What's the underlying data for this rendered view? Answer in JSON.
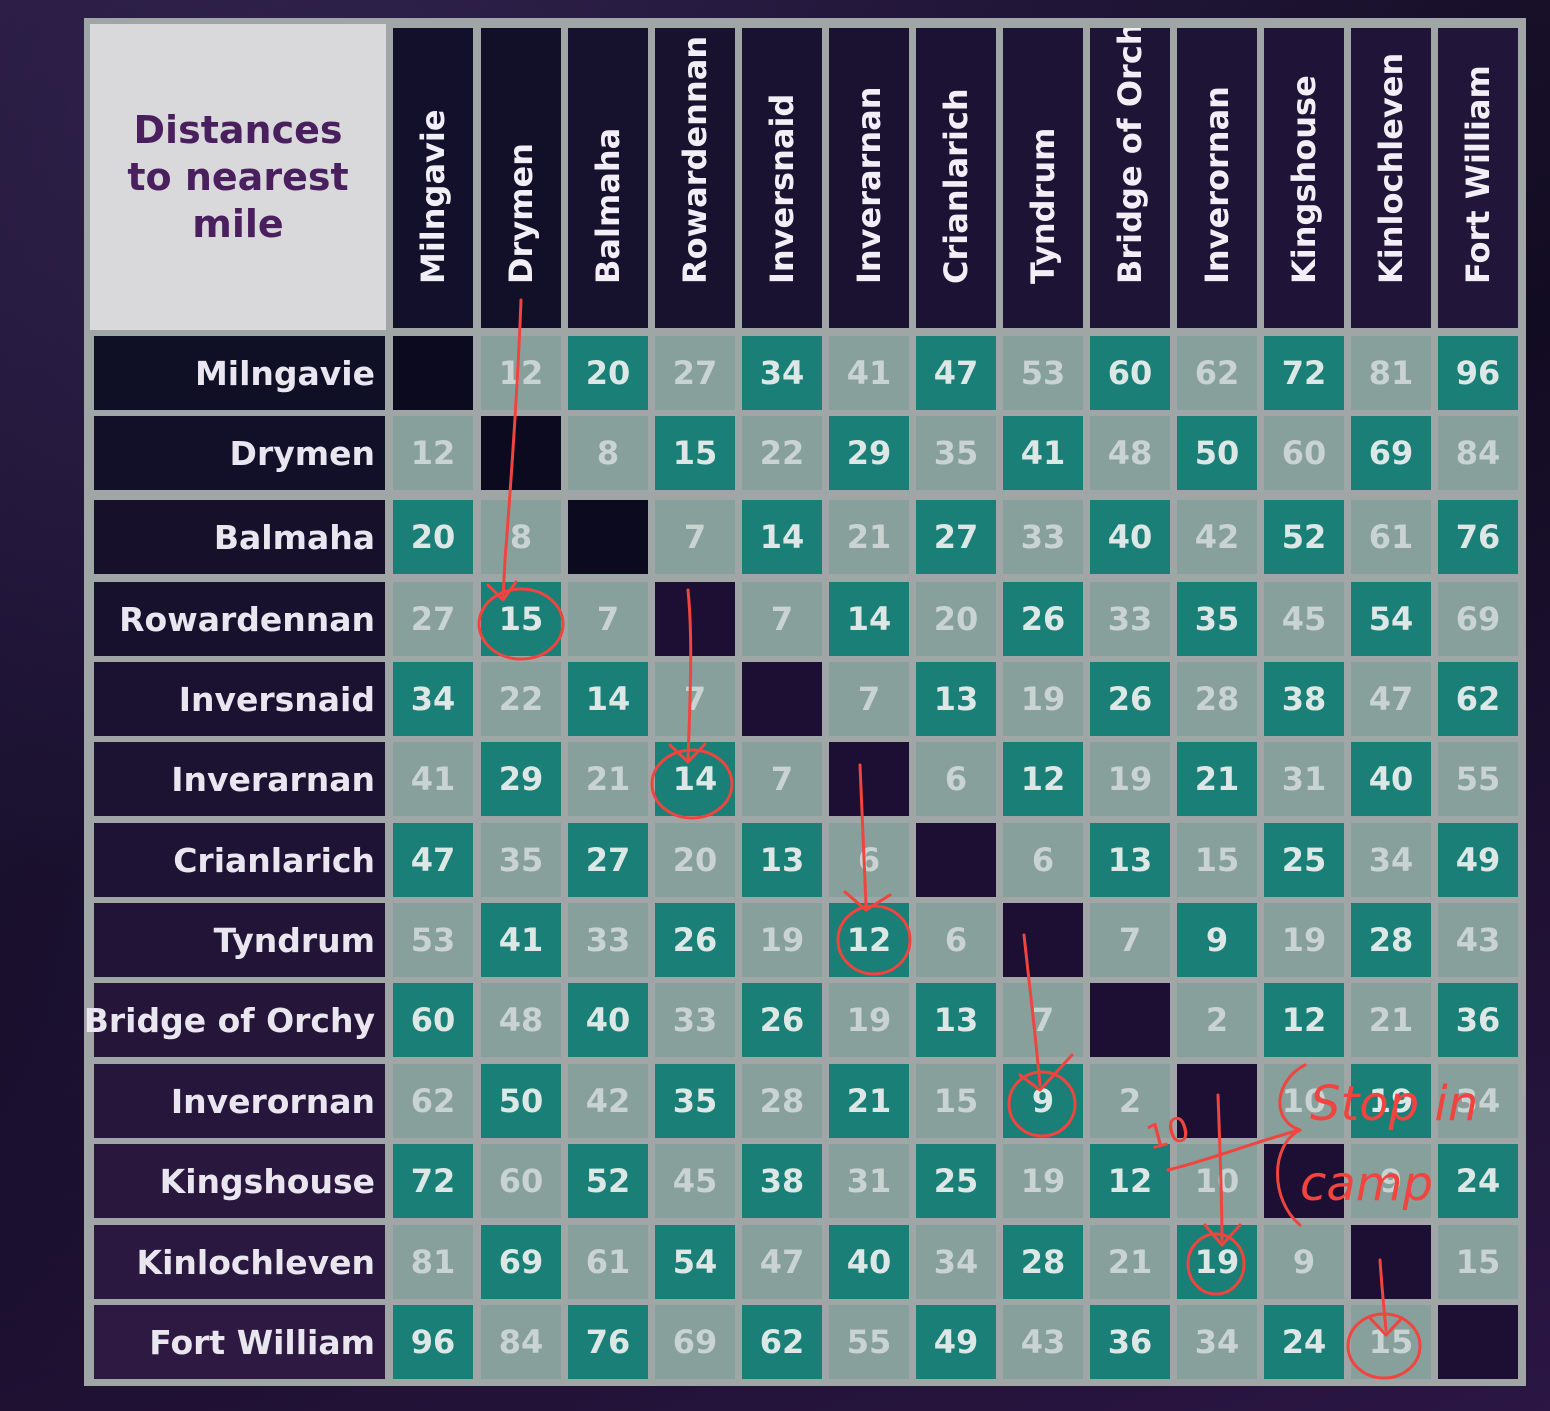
{
  "chart_data": {
    "type": "table",
    "title": "Distances to nearest mile",
    "columns": [
      "Milngavie",
      "Drymen",
      "Balmaha",
      "Rowardennan",
      "Inversnaid",
      "Inverarnan",
      "Crianlarich",
      "Tyndrum",
      "Bridge of Orchy",
      "Inverornan",
      "Kingshouse",
      "Kinlochleven",
      "Fort William"
    ],
    "rows": [
      {
        "name": "Milngavie",
        "values": [
          "",
          "12",
          "20",
          "27",
          "34",
          "41",
          "47",
          "53",
          "60",
          "62",
          "72",
          "81",
          "96"
        ]
      },
      {
        "name": "Drymen",
        "values": [
          "12",
          "",
          "8",
          "15",
          "22",
          "29",
          "35",
          "41",
          "48",
          "50",
          "60",
          "69",
          "84"
        ]
      },
      {
        "name": "Balmaha",
        "values": [
          "20",
          "8",
          "",
          "7",
          "14",
          "21",
          "27",
          "33",
          "40",
          "42",
          "52",
          "61",
          "76"
        ]
      },
      {
        "name": "Rowardennan",
        "values": [
          "27",
          "15",
          "7",
          "",
          "7",
          "14",
          "20",
          "26",
          "33",
          "35",
          "45",
          "54",
          "69"
        ]
      },
      {
        "name": "Inversnaid",
        "values": [
          "34",
          "22",
          "14",
          "7",
          "",
          "7",
          "13",
          "19",
          "26",
          "28",
          "38",
          "47",
          "62"
        ]
      },
      {
        "name": "Inverarnan",
        "values": [
          "41",
          "29",
          "21",
          "14",
          "7",
          "",
          "6",
          "12",
          "19",
          "21",
          "31",
          "40",
          "55"
        ]
      },
      {
        "name": "Crianlarich",
        "values": [
          "47",
          "35",
          "27",
          "20",
          "13",
          "6",
          "",
          "6",
          "13",
          "15",
          "25",
          "34",
          "49"
        ]
      },
      {
        "name": "Tyndrum",
        "values": [
          "53",
          "41",
          "33",
          "26",
          "19",
          "12",
          "6",
          "",
          "7",
          "9",
          "19",
          "28",
          "43"
        ]
      },
      {
        "name": "Bridge of Orchy",
        "values": [
          "60",
          "48",
          "40",
          "33",
          "26",
          "19",
          "13",
          "7",
          "",
          "2",
          "12",
          "21",
          "36"
        ]
      },
      {
        "name": "Inverornan",
        "values": [
          "62",
          "50",
          "42",
          "35",
          "28",
          "21",
          "15",
          "9",
          "2",
          "",
          "10",
          "19",
          "34"
        ]
      },
      {
        "name": "Kingshouse",
        "values": [
          "72",
          "60",
          "52",
          "45",
          "38",
          "31",
          "25",
          "19",
          "12",
          "10",
          "",
          "9",
          "24"
        ]
      },
      {
        "name": "Kinlochleven",
        "values": [
          "81",
          "69",
          "61",
          "54",
          "47",
          "40",
          "34",
          "28",
          "21",
          "19",
          "9",
          "",
          "15"
        ]
      },
      {
        "name": "Fort William",
        "values": [
          "96",
          "84",
          "76",
          "69",
          "62",
          "55",
          "49",
          "43",
          "36",
          "34",
          "24",
          "15",
          ""
        ]
      }
    ],
    "cell_colors": {
      "teal": "#1a7f76",
      "grey": "#87a09c"
    },
    "annotations": [
      "10",
      "Stop in",
      "camp"
    ]
  },
  "colors": {
    "title": "#4a1f5e",
    "annotation": "#f0443f"
  },
  "title_lines": [
    "Distances",
    "to nearest",
    "mile"
  ]
}
